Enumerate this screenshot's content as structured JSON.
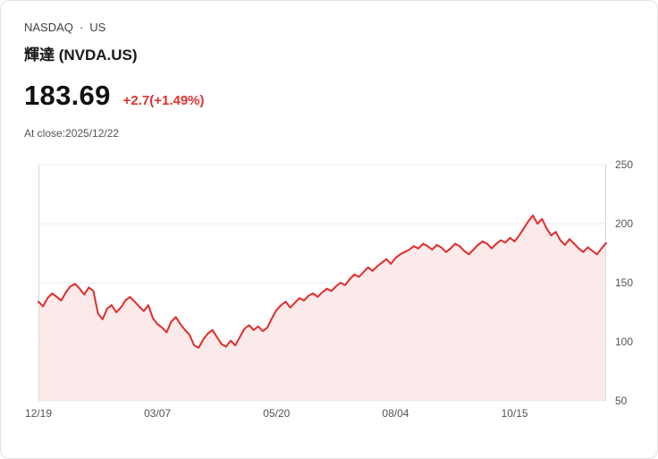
{
  "header": {
    "exchange": "NASDAQ",
    "separator": "·",
    "region": "US",
    "title": "輝達 (NVDA.US)"
  },
  "quote": {
    "price": "183.69",
    "change": "+2.7(+1.49%)",
    "as_of": "At close:2025/12/22"
  },
  "colors": {
    "line": "#e12b2b",
    "fill": "#fceaea",
    "change_text": "#e03131",
    "grid": "#ebebeb",
    "axis_line": "#d8d8d8",
    "axis_text": "#52525b"
  },
  "chart_data": {
    "type": "area",
    "x_tick_labels": [
      "12/19",
      "03/07",
      "05/20",
      "08/04",
      "10/15"
    ],
    "x_tick_indices": [
      0,
      26,
      52,
      78,
      104
    ],
    "y_ticks": [
      50,
      100,
      150,
      200,
      250
    ],
    "ylim": [
      50,
      250
    ],
    "grid": "horizontal",
    "legend": "none",
    "values": [
      134,
      130,
      137,
      141,
      138,
      135,
      142,
      147,
      149,
      145,
      140,
      146,
      143,
      124,
      119,
      128,
      131,
      125,
      129,
      135,
      138,
      134,
      130,
      126,
      131,
      120,
      115,
      112,
      108,
      117,
      121,
      115,
      110,
      106,
      97,
      95,
      102,
      107,
      110,
      104,
      98,
      96,
      101,
      97,
      104,
      111,
      114,
      110,
      113,
      109,
      112,
      120,
      127,
      131,
      134,
      129,
      133,
      137,
      135,
      139,
      141,
      138,
      142,
      145,
      143,
      147,
      150,
      148,
      153,
      157,
      155,
      159,
      163,
      160,
      164,
      167,
      170,
      166,
      171,
      174,
      176,
      178,
      181,
      179,
      183,
      181,
      178,
      182,
      180,
      176,
      179,
      183,
      181,
      177,
      174,
      178,
      182,
      185,
      183,
      179,
      183,
      186,
      184,
      188,
      185,
      190,
      196,
      202,
      207,
      200,
      204,
      196,
      190,
      193,
      186,
      182,
      187,
      183,
      179,
      176,
      180,
      177,
      174,
      179,
      183.69
    ]
  }
}
